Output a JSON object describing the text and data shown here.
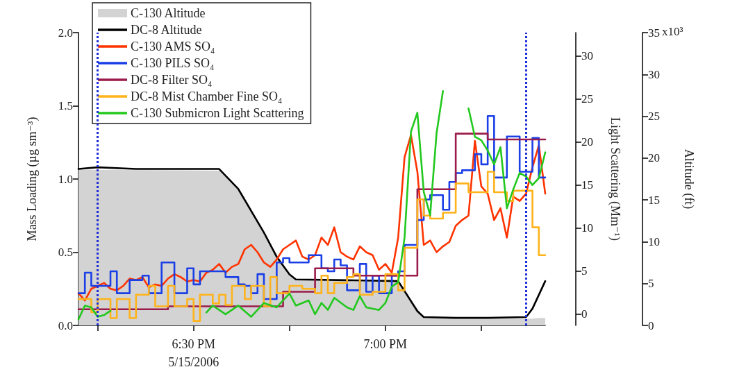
{
  "chart_data": {
    "type": "line",
    "ylabel": "Mass Loading (µg sm⁻³)",
    "y2label": "Light Scattering (Mm⁻¹)",
    "y3label": "Altitude (ft)",
    "xlim": [
      "2006-05-15T18:12",
      "2006-05-15T19:25"
    ],
    "xticks": [
      {
        "value": "2006-05-15T18:15",
        "label": null
      },
      {
        "value": "2006-05-15T18:30",
        "label": "6:30 PM\n5/15/2006"
      },
      {
        "value": "2006-05-15T18:45",
        "label": null
      },
      {
        "value": "2006-05-15T19:00",
        "label": "7:00 PM"
      },
      {
        "value": "2006-05-15T19:15",
        "label": null
      }
    ],
    "ylim": [
      0,
      2
    ],
    "yticks": [
      {
        "value": 0,
        "label": "0.0"
      },
      {
        "value": 0.5,
        "label": "0.5"
      },
      {
        "value": 1,
        "label": "1.0"
      },
      {
        "value": 1.5,
        "label": "1.5"
      },
      {
        "value": 2,
        "label": "2.0"
      }
    ],
    "y2lim": [
      -1.3,
      32.7
    ],
    "y2ticks": [
      0,
      5,
      10,
      15,
      20,
      25,
      30
    ],
    "y3lim": [
      0,
      35
    ],
    "y3ticks": [
      0,
      5,
      10,
      15,
      20,
      25,
      30,
      35
    ],
    "annotations": [
      "x10³"
    ],
    "legend": "top left",
    "marker": "none",
    "ref_lines": [
      {
        "axis": "x",
        "value": "2006-05-15T18:15",
        "color": "#1f2fd8",
        "line_style": "dotted"
      },
      {
        "axis": "x",
        "value": "2006-05-15T19:22",
        "color": "#1f2fd8",
        "line_style": "dotted"
      }
    ],
    "series": [
      {
        "name": "C-130 Altitude",
        "type": "area",
        "axis": "y3",
        "color": "#d3d3d3",
        "x": [
          "2006-05-15T18:12",
          "2006-05-15T18:34",
          "2006-05-15T18:37",
          "2006-05-15T18:41",
          "2006-05-15T18:45",
          "2006-05-15T18:46",
          "2006-05-15T19:02",
          "2006-05-15T19:03",
          "2006-05-15T19:06",
          "2006-05-15T19:11",
          "2006-05-15T19:23",
          "2006-05-15T19:24",
          "2006-05-15T19:25"
        ],
        "values": [
          18.6,
          18.5,
          16.2,
          11.0,
          6.0,
          5.4,
          5.2,
          4.1,
          1.0,
          0.8,
          0.8,
          0.9,
          0.9
        ]
      },
      {
        "name": "DC-8 Altitude",
        "type": "line",
        "axis": "y3",
        "color": "#000000",
        "x": [
          "2006-05-15T18:12",
          "2006-05-15T18:15",
          "2006-05-15T18:21",
          "2006-05-15T18:34",
          "2006-05-15T18:37",
          "2006-05-15T18:41",
          "2006-05-15T18:43",
          "2006-05-15T18:45",
          "2006-05-15T18:46",
          "2006-05-15T18:54",
          "2006-05-15T19:02",
          "2006-05-15T19:03",
          "2006-05-15T19:05",
          "2006-05-15T19:06",
          "2006-05-15T19:11",
          "2006-05-15T19:16",
          "2006-05-15T19:22",
          "2006-05-15T19:23",
          "2006-05-15T19:25"
        ],
        "values": [
          18.7,
          18.9,
          18.7,
          18.7,
          16.3,
          11.1,
          8.2,
          6.1,
          5.5,
          5.4,
          5.3,
          4.1,
          1.7,
          1.0,
          0.9,
          0.9,
          1.0,
          2.0,
          5.3
        ]
      },
      {
        "name": "C-130 AMS SO₄",
        "type": "line",
        "color": "#ff3300",
        "x": [
          "2006-05-15T18:12",
          "2006-05-15T18:13",
          "2006-05-15T18:14",
          "2006-05-15T18:15",
          "2006-05-15T18:16",
          "2006-05-15T18:17",
          "2006-05-15T18:18",
          "2006-05-15T18:19",
          "2006-05-15T18:20",
          "2006-05-15T18:21",
          "2006-05-15T18:22",
          "2006-05-15T18:23",
          "2006-05-15T18:24",
          "2006-05-15T18:25",
          "2006-05-15T18:26",
          "2006-05-15T18:27",
          "2006-05-15T18:28",
          "2006-05-15T18:29",
          "2006-05-15T18:30",
          "2006-05-15T18:31",
          "2006-05-15T18:32",
          "2006-05-15T18:33",
          "2006-05-15T18:34",
          "2006-05-15T18:35",
          "2006-05-15T18:36",
          "2006-05-15T18:37",
          "2006-05-15T18:38",
          "2006-05-15T18:39",
          "2006-05-15T18:40",
          "2006-05-15T18:41",
          "2006-05-15T18:42",
          "2006-05-15T18:43",
          "2006-05-15T18:44",
          "2006-05-15T18:45",
          "2006-05-15T18:46",
          "2006-05-15T18:47",
          "2006-05-15T18:48",
          "2006-05-15T18:49",
          "2006-05-15T18:50",
          "2006-05-15T18:51",
          "2006-05-15T18:52",
          "2006-05-15T18:53",
          "2006-05-15T18:54",
          "2006-05-15T18:55",
          "2006-05-15T18:56",
          "2006-05-15T18:57",
          "2006-05-15T18:58",
          "2006-05-15T18:59",
          "2006-05-15T19:00",
          "2006-05-15T19:01",
          "2006-05-15T19:02",
          "2006-05-15T19:03",
          "2006-05-15T19:04",
          "2006-05-15T19:05",
          "2006-05-15T19:06",
          "2006-05-15T19:07",
          "2006-05-15T19:08",
          "2006-05-15T19:09",
          "2006-05-15T19:10",
          "2006-05-15T19:11",
          "2006-05-15T19:12",
          "2006-05-15T19:13",
          "2006-05-15T19:14",
          "2006-05-15T19:15",
          "2006-05-15T19:16",
          "2006-05-15T19:17",
          "2006-05-15T19:18",
          "2006-05-15T19:19",
          "2006-05-15T19:20",
          "2006-05-15T19:21",
          "2006-05-15T19:22",
          "2006-05-15T19:23",
          "2006-05-15T19:24",
          "2006-05-15T19:25"
        ],
        "values": [
          0.22,
          0.17,
          0.25,
          0.27,
          0.29,
          0.25,
          0.24,
          0.27,
          0.32,
          0.31,
          0.33,
          0.26,
          0.28,
          0.27,
          0.32,
          0.35,
          0.33,
          0.3,
          0.31,
          0.3,
          0.36,
          0.38,
          0.42,
          0.36,
          0.4,
          0.42,
          0.52,
          0.55,
          0.5,
          0.43,
          0.4,
          0.45,
          0.52,
          0.55,
          0.58,
          0.47,
          0.45,
          0.48,
          0.6,
          0.55,
          0.67,
          0.5,
          0.47,
          0.45,
          0.54,
          0.5,
          0.48,
          0.38,
          0.42,
          0.36,
          0.6,
          1.15,
          1.3,
          1.05,
          0.55,
          0.58,
          0.5,
          0.54,
          0.57,
          0.68,
          0.72,
          0.75,
          1.26,
          0.95,
          0.9,
          0.72,
          0.8,
          0.6,
          0.88,
          0.85,
          0.9,
          1.08,
          1.23,
          0.9
        ]
      },
      {
        "name": "C-130 PILS SO₄",
        "type": "step",
        "color": "#1a3fe6",
        "x": [
          "2006-05-15T18:12",
          "2006-05-15T18:13",
          "2006-05-15T18:14",
          "2006-05-15T18:17",
          "2006-05-15T18:18",
          "2006-05-15T18:20",
          "2006-05-15T18:22",
          "2006-05-15T18:23",
          "2006-05-15T18:25",
          "2006-05-15T18:27",
          "2006-05-15T18:29",
          "2006-05-15T18:30",
          "2006-05-15T18:31",
          "2006-05-15T18:35",
          "2006-05-15T18:37",
          "2006-05-15T18:38",
          "2006-05-15T18:39",
          "2006-05-15T18:40",
          "2006-05-15T18:41",
          "2006-05-15T18:43",
          "2006-05-15T18:44",
          "2006-05-15T18:45",
          "2006-05-15T18:48",
          "2006-05-15T18:50",
          "2006-05-15T18:51",
          "2006-05-15T18:52",
          "2006-05-15T18:53",
          "2006-05-15T18:54",
          "2006-05-15T18:56",
          "2006-05-15T18:57",
          "2006-05-15T18:58",
          "2006-05-15T18:59",
          "2006-05-15T19:01",
          "2006-05-15T19:02",
          "2006-05-15T19:03",
          "2006-05-15T19:05",
          "2006-05-15T19:06",
          "2006-05-15T19:07",
          "2006-05-15T19:09",
          "2006-05-15T19:10",
          "2006-05-15T19:11",
          "2006-05-15T19:12",
          "2006-05-15T19:14",
          "2006-05-15T19:15",
          "2006-05-15T19:16",
          "2006-05-15T19:17",
          "2006-05-15T19:19",
          "2006-05-15T19:21",
          "2006-05-15T19:23",
          "2006-05-15T19:24",
          "2006-05-15T19:25"
        ],
        "values": [
          0.22,
          0.36,
          0.27,
          0.37,
          0.22,
          0.31,
          0.34,
          0.22,
          0.43,
          0.22,
          0.39,
          0.28,
          0.37,
          0.33,
          0.28,
          0.27,
          0.22,
          0.35,
          0.18,
          0.43,
          0.46,
          0.43,
          0.48,
          0.39,
          0.37,
          0.45,
          0.41,
          0.24,
          0.42,
          0.23,
          0.34,
          0.22,
          0.34,
          0.37,
          0.55,
          0.72,
          0.86,
          0.89,
          0.79,
          0.98,
          1.04,
          1.06,
          1.17,
          1.1,
          1.43,
          1.01,
          1.29,
          1.05,
          1.28,
          1.01,
          1.01
        ]
      },
      {
        "name": "DC-8 Filter SO₄",
        "type": "step",
        "color": "#9b1b4a",
        "x": [
          "2006-05-15T18:12",
          "2006-05-15T18:26",
          "2006-05-15T18:44",
          "2006-05-15T18:49",
          "2006-05-15T18:55",
          "2006-05-15T19:05",
          "2006-05-15T19:11",
          "2006-05-15T19:16",
          "2006-05-15T19:25"
        ],
        "values": [
          0.11,
          0.13,
          0.23,
          0.39,
          0.34,
          0.93,
          1.31,
          1.27,
          1.27
        ]
      },
      {
        "name": "DC-8 Mist Chamber Fine SO₄",
        "type": "step",
        "color": "#ffb31a",
        "x": [
          "2006-05-15T18:12",
          "2006-05-15T18:14",
          "2006-05-15T18:15",
          "2006-05-15T18:17",
          "2006-05-15T18:18",
          "2006-05-15T18:20",
          "2006-05-15T18:21",
          "2006-05-15T18:23",
          "2006-05-15T18:24",
          "2006-05-15T18:26",
          "2006-05-15T18:27",
          "2006-05-15T18:29",
          "2006-05-15T18:30",
          "2006-05-15T18:31",
          "2006-05-15T18:33",
          "2006-05-15T18:34",
          "2006-05-15T18:35",
          "2006-05-15T18:36",
          "2006-05-15T18:38",
          "2006-05-15T18:39",
          "2006-05-15T18:41",
          "2006-05-15T18:42",
          "2006-05-15T18:43",
          "2006-05-15T18:45",
          "2006-05-15T18:47",
          "2006-05-15T18:49",
          "2006-05-15T18:50",
          "2006-05-15T18:51",
          "2006-05-15T18:52",
          "2006-05-15T18:54",
          "2006-05-15T18:55",
          "2006-05-15T18:56",
          "2006-05-15T18:58",
          "2006-05-15T19:00",
          "2006-05-15T19:02",
          "2006-05-15T19:03",
          "2006-05-15T19:05",
          "2006-05-15T19:06",
          "2006-05-15T19:07",
          "2006-05-15T19:09",
          "2006-05-15T19:11",
          "2006-05-15T19:13",
          "2006-05-15T19:16",
          "2006-05-15T19:17",
          "2006-05-15T19:19",
          "2006-05-15T19:20",
          "2006-05-15T19:23",
          "2006-05-15T19:24",
          "2006-05-15T19:25"
        ],
        "values": [
          0.18,
          0.09,
          0.18,
          0.05,
          0.18,
          0.05,
          0.21,
          0.27,
          0.13,
          0.27,
          0.13,
          0.18,
          0.03,
          0.21,
          0.15,
          0.21,
          0.14,
          0.27,
          0.18,
          0.27,
          0.13,
          0.33,
          0.22,
          0.27,
          0.25,
          0.22,
          0.34,
          0.22,
          0.29,
          0.33,
          0.35,
          0.21,
          0.23,
          0.35,
          0.24,
          0.53,
          0.86,
          0.75,
          0.73,
          0.77,
          0.97,
          0.91,
          1.05,
          0.91,
          0.85,
          0.92,
          0.67,
          0.48,
          0.48
        ]
      },
      {
        "name": "C-130 Submicron Light Scattering",
        "type": "line",
        "axis": "y2",
        "color": "#22c81e",
        "x": [
          "2006-05-15T18:12",
          "2006-05-15T18:13",
          "2006-05-15T18:14",
          "2006-05-15T18:15",
          "2006-05-15T18:16",
          "2006-05-15T18:17",
          "2006-05-15T18:21",
          "2006-05-15T18:32",
          "2006-05-15T18:33",
          "2006-05-15T18:35",
          "2006-05-15T18:37",
          "2006-05-15T18:39",
          "2006-05-15T18:41",
          "2006-05-15T18:43",
          "2006-05-15T18:45",
          "2006-05-15T18:46",
          "2006-05-15T18:48",
          "2006-05-15T18:49",
          "2006-05-15T18:50",
          "2006-05-15T18:51",
          "2006-05-15T18:52",
          "2006-05-15T18:54",
          "2006-05-15T18:55",
          "2006-05-15T18:56",
          "2006-05-15T18:57",
          "2006-05-15T18:59",
          "2006-05-15T19:00",
          "2006-05-15T19:01",
          "2006-05-15T19:02",
          "2006-05-15T19:03",
          "2006-05-15T19:04",
          "2006-05-15T19:05",
          "2006-05-15T19:06",
          "2006-05-15T19:07",
          "2006-05-15T19:08",
          "2006-05-15T19:09",
          "2006-05-15T19:11",
          "2006-05-15T19:13",
          "2006-05-15T19:14",
          "2006-05-15T19:15",
          "2006-05-15T19:16",
          "2006-05-15T19:17",
          "2006-05-15T19:18",
          "2006-05-15T19:19",
          "2006-05-15T19:20",
          "2006-05-15T19:21",
          "2006-05-15T19:22",
          "2006-05-15T19:23",
          "2006-05-15T19:24",
          "2006-05-15T19:25"
        ],
        "values": [
          -0.6,
          1,
          0.8,
          -0.3,
          -0.1,
          0.4,
          null,
          0.2,
          1,
          0,
          1,
          -0.3,
          1.3,
          0.8,
          2.4,
          1,
          1.6,
          0,
          1.3,
          0.5,
          1.9,
          0.8,
          0.5,
          2.1,
          0.8,
          0.5,
          1.3,
          3.2,
          3.7,
          8.9,
          21.2,
          23.4,
          14.2,
          11.5,
          21,
          25.9,
          null,
          23.9,
          20.6,
          20.2,
          19,
          17.4,
          19.4,
          12.3,
          14.5,
          16.4,
          16,
          15,
          15.8,
          18.8
        ]
      }
    ]
  }
}
